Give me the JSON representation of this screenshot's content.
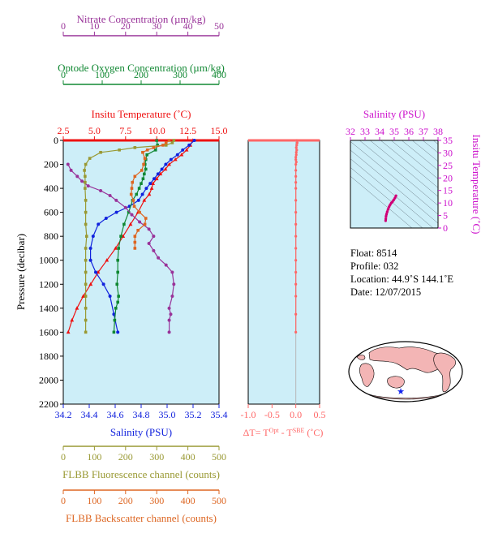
{
  "colors": {
    "nitrate": "#993399",
    "oxygen": "#118833",
    "temperature": "#ee1111",
    "salinity": "#1122dd",
    "fluorescence": "#999933",
    "backscatter": "#dd6622",
    "delta_t": "#ff6666",
    "ts_axis": "#cc11cc",
    "plot_bg": "#cdeef8"
  },
  "float_info": {
    "float": "Float:  8514",
    "profile": "Profile:  032",
    "location": "Location:  44.9˚S  144.1˚E",
    "date": "Date:  12/07/2015"
  },
  "chart_data": [
    {
      "type": "line",
      "name": "main-profile",
      "ylabel": "Pressure (decibar)",
      "ylim": [
        2200,
        0
      ],
      "yticks": [
        0,
        200,
        400,
        600,
        800,
        1000,
        1200,
        1400,
        1600,
        1800,
        2000,
        2200
      ],
      "axes": {
        "nitrate": {
          "label": "Nitrate Concentration (µm/kg)",
          "lim": [
            0,
            50
          ],
          "ticks": [
            0,
            10,
            20,
            30,
            40,
            50
          ]
        },
        "oxygen": {
          "label": "Optode Oxygen Concentration (µm/kg)",
          "lim": [
            0,
            400
          ],
          "ticks": [
            0,
            100,
            200,
            300,
            400
          ]
        },
        "temperature": {
          "label": "Insitu Temperature (˚C)",
          "lim": [
            2.5,
            15.0
          ],
          "ticks": [
            "2.5",
            "5.0",
            "7.5",
            "10.0",
            "12.5",
            "15.0"
          ]
        },
        "salinity": {
          "label": "Salinity (PSU)",
          "lim": [
            34.2,
            35.4
          ],
          "ticks": [
            "34.2",
            "34.4",
            "34.6",
            "34.8",
            "35.0",
            "35.2",
            "35.4"
          ]
        },
        "fluorescence": {
          "label": "FLBB Fluorescence channel (counts)",
          "lim": [
            0,
            500
          ],
          "ticks": [
            0,
            100,
            200,
            300,
            400,
            500
          ]
        },
        "backscatter": {
          "label": "FLBB Backscatter channel (counts)",
          "lim": [
            0,
            500
          ],
          "ticks": [
            0,
            100,
            200,
            300,
            400,
            500
          ]
        }
      },
      "series": [
        {
          "key": "temperature",
          "x": [
            12.9,
            12.7,
            12.4,
            12.0,
            11.5,
            11.0,
            10.7,
            10.3,
            10.0,
            9.7,
            9.6,
            9.4,
            9.0,
            8.5,
            7.9,
            7.3,
            6.7,
            6.0,
            5.3,
            4.7,
            4.1,
            3.6,
            3.2,
            2.9
          ],
          "y": [
            0,
            40,
            80,
            120,
            160,
            200,
            240,
            280,
            320,
            360,
            400,
            450,
            500,
            600,
            700,
            800,
            900,
            1000,
            1100,
            1200,
            1300,
            1400,
            1500,
            1600
          ]
        },
        {
          "key": "salinity",
          "x": [
            35.21,
            35.17,
            35.12,
            35.08,
            35.03,
            34.99,
            34.96,
            34.93,
            34.9,
            34.87,
            34.84,
            34.81,
            34.78,
            34.71,
            34.61,
            34.53,
            34.47,
            34.43,
            34.41,
            34.41,
            34.45,
            34.51,
            34.56,
            34.59,
            34.62
          ],
          "y": [
            0,
            40,
            80,
            120,
            160,
            200,
            240,
            280,
            320,
            360,
            400,
            450,
            500,
            550,
            600,
            650,
            700,
            800,
            900,
            1000,
            1100,
            1200,
            1300,
            1450,
            1600
          ]
        },
        {
          "key": "oxygen",
          "x": [
            240,
            242,
            237,
            215,
            212,
            210,
            212,
            208,
            205,
            200,
            195,
            188,
            178,
            168,
            156,
            148,
            142,
            140,
            140,
            138,
            142,
            140,
            135,
            132,
            130
          ],
          "y": [
            0,
            40,
            80,
            120,
            160,
            200,
            240,
            280,
            320,
            360,
            400,
            450,
            500,
            600,
            700,
            800,
            900,
            1000,
            1100,
            1200,
            1300,
            1350,
            1400,
            1500,
            1600
          ]
        },
        {
          "key": "nitrate",
          "x": [
            1.5,
            2.5,
            4.5,
            6.0,
            8.0,
            12.0,
            15.0,
            17.0,
            20.0,
            22.0,
            24.5,
            27.5,
            29.0,
            27.5,
            29.0,
            30.5,
            33.0,
            35.0,
            35.5,
            35.0,
            34.0,
            34.5,
            34.0,
            34.0
          ],
          "y": [
            200,
            250,
            300,
            340,
            380,
            420,
            460,
            500,
            560,
            620,
            680,
            740,
            800,
            860,
            920,
            980,
            1040,
            1100,
            1200,
            1300,
            1400,
            1450,
            1500,
            1600
          ]
        },
        {
          "key": "fluorescence",
          "x": [
            355,
            350,
            330,
            230,
            180,
            120,
            85,
            72,
            68,
            70,
            70,
            70,
            72,
            72,
            72,
            75,
            72,
            72,
            72,
            72,
            72,
            72,
            72,
            72
          ],
          "y": [
            0,
            20,
            40,
            60,
            80,
            100,
            150,
            200,
            250,
            300,
            350,
            400,
            500,
            600,
            700,
            800,
            900,
            1000,
            1100,
            1200,
            1300,
            1400,
            1500,
            1600
          ]
        },
        {
          "key": "backscatter",
          "x": [
            340,
            330,
            320,
            290,
            270,
            255,
            262,
            258,
            252,
            230,
            222,
            220,
            218,
            225,
            228,
            245,
            265,
            262,
            240,
            230,
            230,
            230
          ],
          "y": [
            0,
            20,
            40,
            60,
            80,
            100,
            150,
            200,
            250,
            300,
            350,
            400,
            450,
            500,
            550,
            600,
            650,
            700,
            750,
            800,
            850,
            900
          ]
        }
      ]
    },
    {
      "type": "line",
      "name": "delta-t",
      "xlabel": "ΔT= T",
      "xlabel_sup1": "Opt",
      "xlabel_mid": " - T",
      "xlabel_sup2": "SBE",
      "xlabel_unit": " (˚C)",
      "xlim": [
        -1.0,
        0.5
      ],
      "ylim": [
        2200,
        0
      ],
      "xticks": [
        "-1.0",
        "-0.5",
        "0.0",
        "0.5"
      ],
      "x": [
        0.02,
        0.03,
        0.02,
        0.01,
        0.02,
        0.01,
        0.01,
        0.0,
        0.0,
        0.01,
        0.0,
        0.0,
        0.0,
        0.0,
        0.0,
        0.0,
        0.0,
        0.0,
        0.0,
        0.0,
        0.0,
        0.0,
        0.0,
        0.0,
        0.0,
        0.0
      ],
      "y": [
        0,
        20,
        40,
        60,
        80,
        100,
        120,
        140,
        160,
        180,
        200,
        250,
        300,
        350,
        400,
        500,
        600,
        700,
        800,
        900,
        1000,
        1100,
        1200,
        1300,
        1450,
        1600
      ]
    },
    {
      "type": "line",
      "name": "ts-diagram",
      "xlabel": "Salinity (PSU)",
      "ylabel": "Insitu Temperature (˚C)",
      "xlim": [
        32,
        38
      ],
      "ylim": [
        0,
        35
      ],
      "xticks": [
        32,
        33,
        34,
        35,
        36,
        37,
        38
      ],
      "yticks": [
        0,
        5,
        10,
        15,
        20,
        25,
        30,
        35
      ],
      "x": [
        34.41,
        34.42,
        34.44,
        34.47,
        34.52,
        34.58,
        34.65,
        34.72,
        34.8,
        34.88,
        34.96,
        35.05,
        35.12
      ],
      "y": [
        2.9,
        3.6,
        4.7,
        5.5,
        6.5,
        7.5,
        8.5,
        9.3,
        10.0,
        10.5,
        11.2,
        12.0,
        12.9
      ]
    }
  ]
}
